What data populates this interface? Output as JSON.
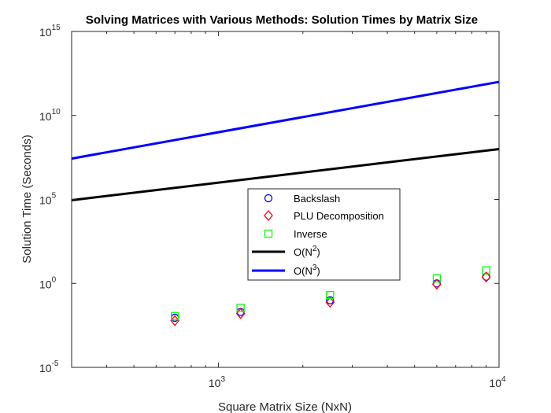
{
  "chart_data": {
    "type": "scatter",
    "title": "Solving Matrices with Various Methods: Solution Times by Matrix Size",
    "xlabel": "Square Matrix Size (NxN)",
    "ylabel": "Solution Time (Seconds)",
    "xscale": "log",
    "yscale": "log",
    "xlim": [
      300,
      10000
    ],
    "ylim": [
      1e-05,
      1000000000000000
    ],
    "x_ticks": [
      {
        "base": "10",
        "exp": "3",
        "value": 1000
      },
      {
        "base": "10",
        "exp": "4",
        "value": 10000
      }
    ],
    "y_ticks": [
      {
        "base": "10",
        "exp": "-5",
        "value": 1e-05
      },
      {
        "base": "10",
        "exp": "0",
        "value": 1
      },
      {
        "base": "10",
        "exp": "5",
        "value": 100000
      },
      {
        "base": "10",
        "exp": "10",
        "value": 10000000000
      },
      {
        "base": "10",
        "exp": "15",
        "value": 1000000000000000
      }
    ],
    "grid": false,
    "legend_position": "center",
    "series": [
      {
        "name": "Backslash",
        "kind": "marker",
        "marker": "circle",
        "color": "#0000ff",
        "x": [
          700,
          1200,
          2500,
          6000,
          9000
        ],
        "y": [
          0.009,
          0.02,
          0.1,
          1.0,
          2.5
        ]
      },
      {
        "name": "PLU Decomposition",
        "kind": "marker",
        "marker": "diamond",
        "color": "#ff0000",
        "x": [
          700,
          1200,
          2500,
          6000,
          9000
        ],
        "y": [
          0.006,
          0.016,
          0.075,
          0.9,
          2.4
        ]
      },
      {
        "name": "Inverse",
        "kind": "marker",
        "marker": "square",
        "color": "#00ff00",
        "x": [
          700,
          1200,
          2500,
          6000,
          9000
        ],
        "y": [
          0.011,
          0.035,
          0.2,
          2.0,
          6.0
        ]
      },
      {
        "name_base": "O(N",
        "name_exp": "2",
        "name_end": ")",
        "kind": "line",
        "color": "#000000",
        "x": [
          300,
          10000
        ],
        "y": [
          90000,
          100000000
        ]
      },
      {
        "name_base": "O(N",
        "name_exp": "3",
        "name_end": ")",
        "kind": "line",
        "color": "#0000ff",
        "x": [
          300,
          10000
        ],
        "y": [
          27000000,
          1000000000000
        ]
      }
    ]
  }
}
